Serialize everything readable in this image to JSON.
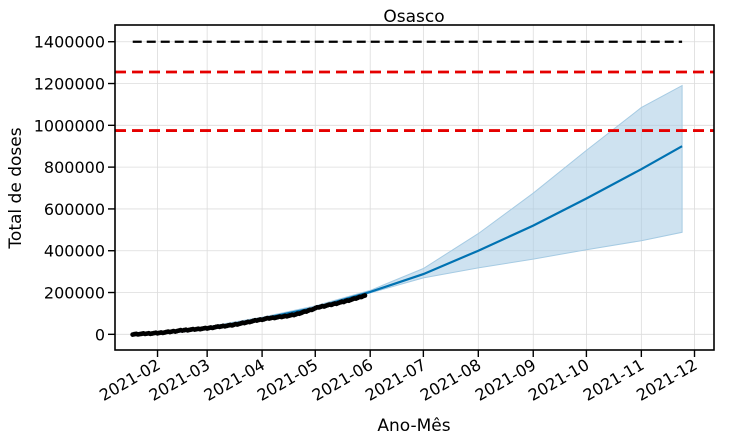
{
  "chart_data": {
    "type": "line",
    "title": "Osasco",
    "xlabel": "Ano-Mês",
    "ylabel": "Total de doses",
    "x_tick_labels": [
      "2021-02",
      "2021-03",
      "2021-04",
      "2021-05",
      "2021-06",
      "2021-07",
      "2021-08",
      "2021-09",
      "2021-10",
      "2021-11",
      "2021-12"
    ],
    "x_tick_dates": [
      "2021-02-01",
      "2021-03-01",
      "2021-04-01",
      "2021-05-01",
      "2021-06-01",
      "2021-07-01",
      "2021-08-01",
      "2021-09-01",
      "2021-10-01",
      "2021-11-01",
      "2021-12-01"
    ],
    "xlim": [
      "2021-01-08",
      "2021-12-12"
    ],
    "y_ticks": [
      0,
      200000,
      400000,
      600000,
      800000,
      1000000,
      1200000,
      1400000
    ],
    "y_tick_labels": [
      "0",
      "200000",
      "400000",
      "600000",
      "800000",
      "1000000",
      "1200000",
      "1400000"
    ],
    "ylim": [
      -75000,
      1480000
    ],
    "grid": true,
    "colors": {
      "forecast": "#0072b2",
      "interval": "#a6cbe3",
      "observed": "#000000",
      "target": "#000000",
      "threshold": "#e50000"
    },
    "series": [
      {
        "kind": "observed",
        "x": [
          "2021-01-18",
          "2021-01-25",
          "2021-02-01",
          "2021-02-08",
          "2021-02-15",
          "2021-02-22",
          "2021-03-01",
          "2021-03-08",
          "2021-03-15",
          "2021-03-22",
          "2021-03-29",
          "2021-04-05",
          "2021-04-12",
          "2021-04-19",
          "2021-04-26",
          "2021-05-03",
          "2021-05-10",
          "2021-05-17",
          "2021-05-24",
          "2021-05-29"
        ],
        "y": [
          0,
          3000,
          6000,
          12000,
          19000,
          24000,
          29000,
          37000,
          44000,
          55000,
          67000,
          77000,
          84000,
          93000,
          110000,
          130000,
          142000,
          156000,
          172000,
          186000
        ]
      },
      {
        "kind": "forecast",
        "x": [
          "2021-01-18",
          "2021-02-01",
          "2021-03-01",
          "2021-04-01",
          "2021-05-01",
          "2021-06-01",
          "2021-07-01",
          "2021-08-01",
          "2021-09-01",
          "2021-10-01",
          "2021-11-01",
          "2021-11-24"
        ],
        "y": [
          2000,
          7000,
          29000,
          75000,
          128000,
          203000,
          288000,
          400000,
          520000,
          650000,
          790000,
          900000
        ],
        "lower": [
          -4000,
          0,
          22000,
          67000,
          120000,
          198000,
          270000,
          318000,
          360000,
          405000,
          448000,
          488000
        ],
        "upper": [
          8000,
          13000,
          36000,
          82000,
          136000,
          210000,
          315000,
          482000,
          675000,
          880000,
          1085000,
          1190000
        ]
      },
      {
        "kind": "target",
        "x": [
          "2021-01-18",
          "2021-11-24"
        ],
        "y": [
          1400000,
          1400000
        ]
      }
    ],
    "thresholds": [
      1255000,
      975000
    ]
  }
}
